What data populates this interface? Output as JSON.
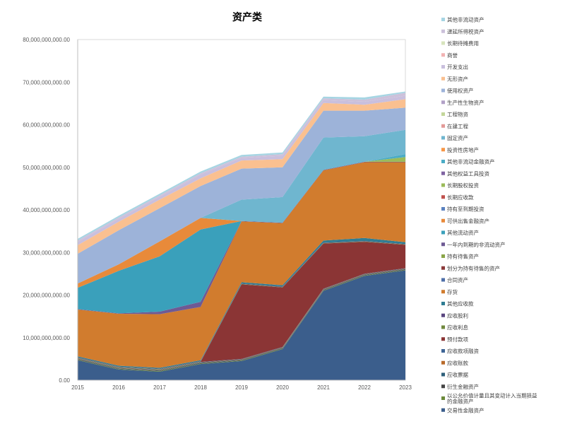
{
  "chart_data": {
    "type": "area",
    "title": "资产类",
    "xlabel": "",
    "ylabel": "",
    "x": [
      "2015",
      "2016",
      "2017",
      "2018",
      "2019",
      "2020",
      "2021",
      "2022",
      "2023"
    ],
    "ylim": [
      0,
      80000000000
    ],
    "yticks": [
      0,
      10000000000,
      20000000000,
      30000000000,
      40000000000,
      50000000000,
      60000000000,
      70000000000,
      80000000000
    ],
    "ytick_labels": [
      "0.00",
      "10,000,000,000.00",
      "20,000,000,000.00",
      "30,000,000,000.00",
      "40,000,000,000.00",
      "50,000,000,000.00",
      "60,000,000,000.00",
      "70,000,000,000.00",
      "80,000,000,000.00"
    ],
    "grid": false,
    "legend_position": "right",
    "series": [
      {
        "name": "交易性金融资产",
        "color": "#3b5e8c",
        "values": [
          4700000000,
          2500000000,
          2000000000,
          3800000000,
          4500000000,
          7300000000,
          21000000000,
          24500000000,
          25800000000
        ]
      },
      {
        "name": "以公允价值计量且其变动计入当期损益的金融资产",
        "color": "#6b8a3a",
        "values": [
          100000000,
          100000000,
          100000000,
          100000000,
          100000000,
          100000000,
          100000000,
          100000000,
          100000000
        ]
      },
      {
        "name": "衍生金融资产",
        "color": "#444444",
        "values": [
          100000000,
          100000000,
          100000000,
          100000000,
          100000000,
          100000000,
          100000000,
          100000000,
          100000000
        ]
      },
      {
        "name": "应收票据",
        "color": "#2e5f7a",
        "values": [
          100000000,
          100000000,
          100000000,
          100000000,
          100000000,
          100000000,
          100000000,
          100000000,
          100000000
        ]
      },
      {
        "name": "应收账款",
        "color": "#b86a2a",
        "values": [
          100000000,
          100000000,
          100000000,
          100000000,
          100000000,
          100000000,
          100000000,
          100000000,
          100000000
        ]
      },
      {
        "name": "应收款项融资",
        "color": "#3e6596",
        "values": [
          100000000,
          100000000,
          100000000,
          100000000,
          100000000,
          100000000,
          100000000,
          100000000,
          100000000
        ]
      },
      {
        "name": "预付款项",
        "color": "#8b3535",
        "values": [
          0,
          0,
          0,
          0,
          17500000000,
          14000000000,
          10600000000,
          7500000000,
          5500000000
        ]
      },
      {
        "name": "应收利息",
        "color": "#70883e",
        "values": [
          100000000,
          100000000,
          100000000,
          100000000,
          100000000,
          100000000,
          100000000,
          100000000,
          100000000
        ]
      },
      {
        "name": "应收股利",
        "color": "#5a4680",
        "values": [
          100000000,
          100000000,
          100000000,
          100000000,
          100000000,
          100000000,
          100000000,
          100000000,
          100000000
        ]
      },
      {
        "name": "其他应收款",
        "color": "#2f7d93",
        "values": [
          200000000,
          200000000,
          200000000,
          200000000,
          300000000,
          300000000,
          500000000,
          700000000,
          400000000
        ]
      },
      {
        "name": "存货",
        "color": "#d17c2e",
        "values": [
          11000000000,
          12200000000,
          12600000000,
          12500000000,
          14300000000,
          14600000000,
          16500000000,
          17800000000,
          18800000000
        ]
      },
      {
        "name": "合同资产",
        "color": "#4e6fa8",
        "values": [
          0,
          0,
          0,
          0,
          0,
          0,
          0,
          0,
          0
        ]
      },
      {
        "name": "划分为持有待售的资产",
        "color": "#8b3a3a",
        "values": [
          0,
          0,
          0,
          0,
          0,
          0,
          0,
          0,
          0
        ]
      },
      {
        "name": "持有待售资产",
        "color": "#8aa548",
        "values": [
          0,
          0,
          0,
          0,
          0,
          0,
          0,
          0,
          0
        ]
      },
      {
        "name": "一年内到期的非流动资产",
        "color": "#6e5a94",
        "values": [
          100000000,
          100000000,
          600000000,
          1200000000,
          100000000,
          100000000,
          100000000,
          100000000,
          100000000
        ]
      },
      {
        "name": "其他流动资产",
        "color": "#3aa0bb",
        "values": [
          5000000000,
          10000000000,
          13000000000,
          17000000000,
          0,
          0,
          0,
          0,
          0
        ]
      },
      {
        "name": "可供出售金融资产",
        "color": "#e88a3a",
        "values": [
          1000000000,
          1500000000,
          3500000000,
          2700000000,
          0,
          0,
          0,
          0,
          0
        ]
      },
      {
        "name": "持有至到期投资",
        "color": "#5b82c0",
        "values": [
          0,
          0,
          0,
          0,
          0,
          0,
          0,
          0,
          0
        ]
      },
      {
        "name": "长期应收款",
        "color": "#c0504d",
        "values": [
          0,
          0,
          0,
          0,
          0,
          0,
          0,
          0,
          0
        ]
      },
      {
        "name": "长期股权投资",
        "color": "#9bbb59",
        "values": [
          0,
          0,
          0,
          0,
          0,
          0,
          0,
          0,
          1100000000
        ]
      },
      {
        "name": "其他权益工具投资",
        "color": "#8064a2",
        "values": [
          0,
          0,
          0,
          0,
          0,
          0,
          0,
          0,
          0
        ]
      },
      {
        "name": "其他非流动金融资产",
        "color": "#4bacc6",
        "values": [
          0,
          0,
          0,
          0,
          0,
          0,
          0,
          0,
          700000000
        ]
      },
      {
        "name": "投资性房地产",
        "color": "#f79646",
        "values": [
          0,
          0,
          0,
          0,
          0,
          0,
          0,
          0,
          0
        ]
      },
      {
        "name": "固定资产",
        "color": "#6fb6cf",
        "values": [
          0,
          0,
          0,
          0,
          5000000000,
          6000000000,
          7600000000,
          6000000000,
          5700000000
        ]
      },
      {
        "name": "在建工程",
        "color": "#e39a98",
        "values": [
          0,
          0,
          0,
          0,
          0,
          0,
          0,
          0,
          0
        ]
      },
      {
        "name": "工程物资",
        "color": "#c4d79b",
        "values": [
          0,
          0,
          0,
          0,
          0,
          0,
          0,
          0,
          0
        ]
      },
      {
        "name": "生产性生物资产",
        "color": "#b2a1c7",
        "values": [
          0,
          0,
          0,
          0,
          0,
          0,
          0,
          0,
          0
        ]
      },
      {
        "name": "使用权资产",
        "color": "#9db3d9",
        "values": [
          7000000000,
          8000000000,
          7800000000,
          7500000000,
          7300000000,
          7000000000,
          6300000000,
          6000000000,
          5200000000
        ]
      },
      {
        "name": "无形资产",
        "color": "#fac090",
        "values": [
          2000000000,
          2000000000,
          2000000000,
          1800000000,
          1900000000,
          1900000000,
          1800000000,
          1400000000,
          2000000000
        ]
      },
      {
        "name": "开发支出",
        "color": "#c9bfdd",
        "values": [
          800000000,
          700000000,
          700000000,
          900000000,
          600000000,
          800000000,
          700000000,
          700000000,
          800000000
        ]
      },
      {
        "name": "商誉",
        "color": "#f2b3b3",
        "values": [
          0,
          0,
          0,
          0,
          0,
          0,
          0,
          0,
          0
        ]
      },
      {
        "name": "长期待摊费用",
        "color": "#d7e4bd",
        "values": [
          0,
          0,
          0,
          0,
          0,
          0,
          0,
          0,
          0
        ]
      },
      {
        "name": "递延所得税资产",
        "color": "#ccc1da",
        "values": [
          300000000,
          300000000,
          300000000,
          300000000,
          300000000,
          400000000,
          400000000,
          500000000,
          700000000
        ]
      },
      {
        "name": "其他非流动资产",
        "color": "#a6d5e3",
        "values": [
          400000000,
          400000000,
          400000000,
          400000000,
          400000000,
          400000000,
          400000000,
          500000000,
          300000000
        ]
      }
    ]
  }
}
